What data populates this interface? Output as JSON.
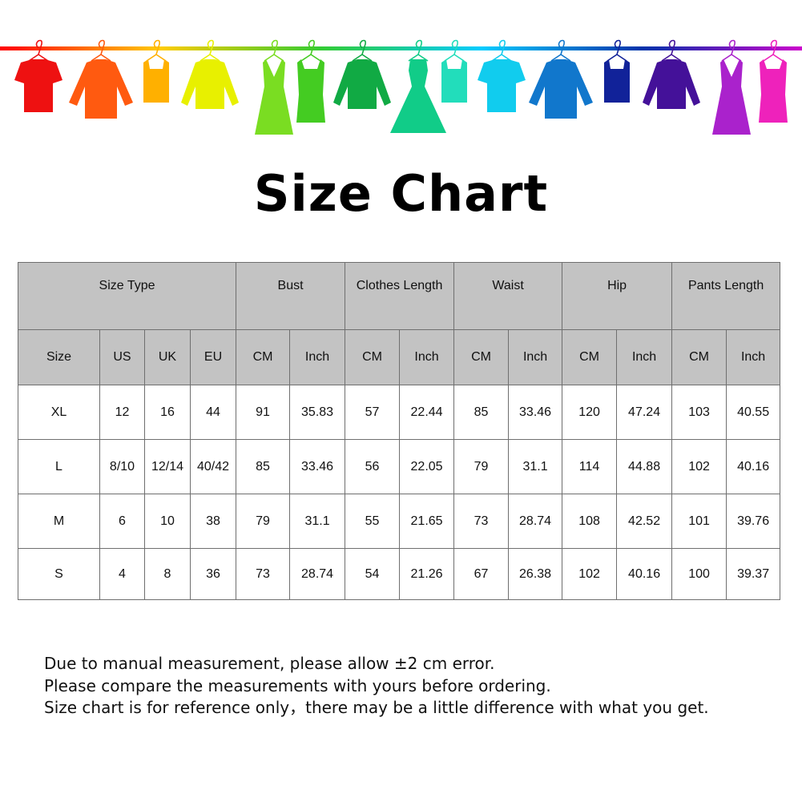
{
  "banner": {
    "rail_colors": [
      "#ff0000",
      "#ffcc00",
      "#33cc33",
      "#00ccff",
      "#0033aa",
      "#cc00cc"
    ],
    "clothes": [
      {
        "type": "tshirt",
        "color": "#ee1111"
      },
      {
        "type": "shirt",
        "color": "#ff5a10"
      },
      {
        "type": "tank",
        "color": "#ffb000"
      },
      {
        "type": "sweater",
        "color": "#e8f000"
      },
      {
        "type": "dress",
        "color": "#7add22"
      },
      {
        "type": "tank-dress",
        "color": "#44cc22"
      },
      {
        "type": "sweater",
        "color": "#11aa44"
      },
      {
        "type": "ball-dress",
        "color": "#11cc88"
      },
      {
        "type": "tank",
        "color": "#22ddbb"
      },
      {
        "type": "tshirt",
        "color": "#11ccee"
      },
      {
        "type": "shirt",
        "color": "#1177cc"
      },
      {
        "type": "tank",
        "color": "#112299"
      },
      {
        "type": "sweater",
        "color": "#441199"
      },
      {
        "type": "dress",
        "color": "#aa22cc"
      },
      {
        "type": "tank-dress",
        "color": "#ee22bb"
      }
    ]
  },
  "title": "Size Chart",
  "table": {
    "groups": [
      "Size Type",
      "Bust",
      "Clothes Length",
      "Waist",
      "Hip",
      "Pants Length"
    ],
    "subheaders": [
      "Size",
      "US",
      "UK",
      "EU",
      "CM",
      "Inch",
      "CM",
      "Inch",
      "CM",
      "Inch",
      "CM",
      "Inch",
      "CM",
      "Inch"
    ],
    "rows": [
      [
        "XL",
        "12",
        "16",
        "44",
        "91",
        "35.83",
        "57",
        "22.44",
        "85",
        "33.46",
        "120",
        "47.24",
        "103",
        "40.55"
      ],
      [
        "L",
        "8/10",
        "12/14",
        "40/42",
        "85",
        "33.46",
        "56",
        "22.05",
        "79",
        "31.1",
        "114",
        "44.88",
        "102",
        "40.16"
      ],
      [
        "M",
        "6",
        "10",
        "38",
        "79",
        "31.1",
        "55",
        "21.65",
        "73",
        "28.74",
        "108",
        "42.52",
        "101",
        "39.76"
      ],
      [
        "S",
        "4",
        "8",
        "36",
        "73",
        "28.74",
        "54",
        "21.26",
        "67",
        "26.38",
        "102",
        "40.16",
        "100",
        "39.37"
      ]
    ]
  },
  "notes": [
    "Due to manual measurement, please allow ±2 cm error.",
    "Please compare the measurements with yours before ordering.",
    "Size chart is for reference only，there may be a little difference with what you get."
  ]
}
